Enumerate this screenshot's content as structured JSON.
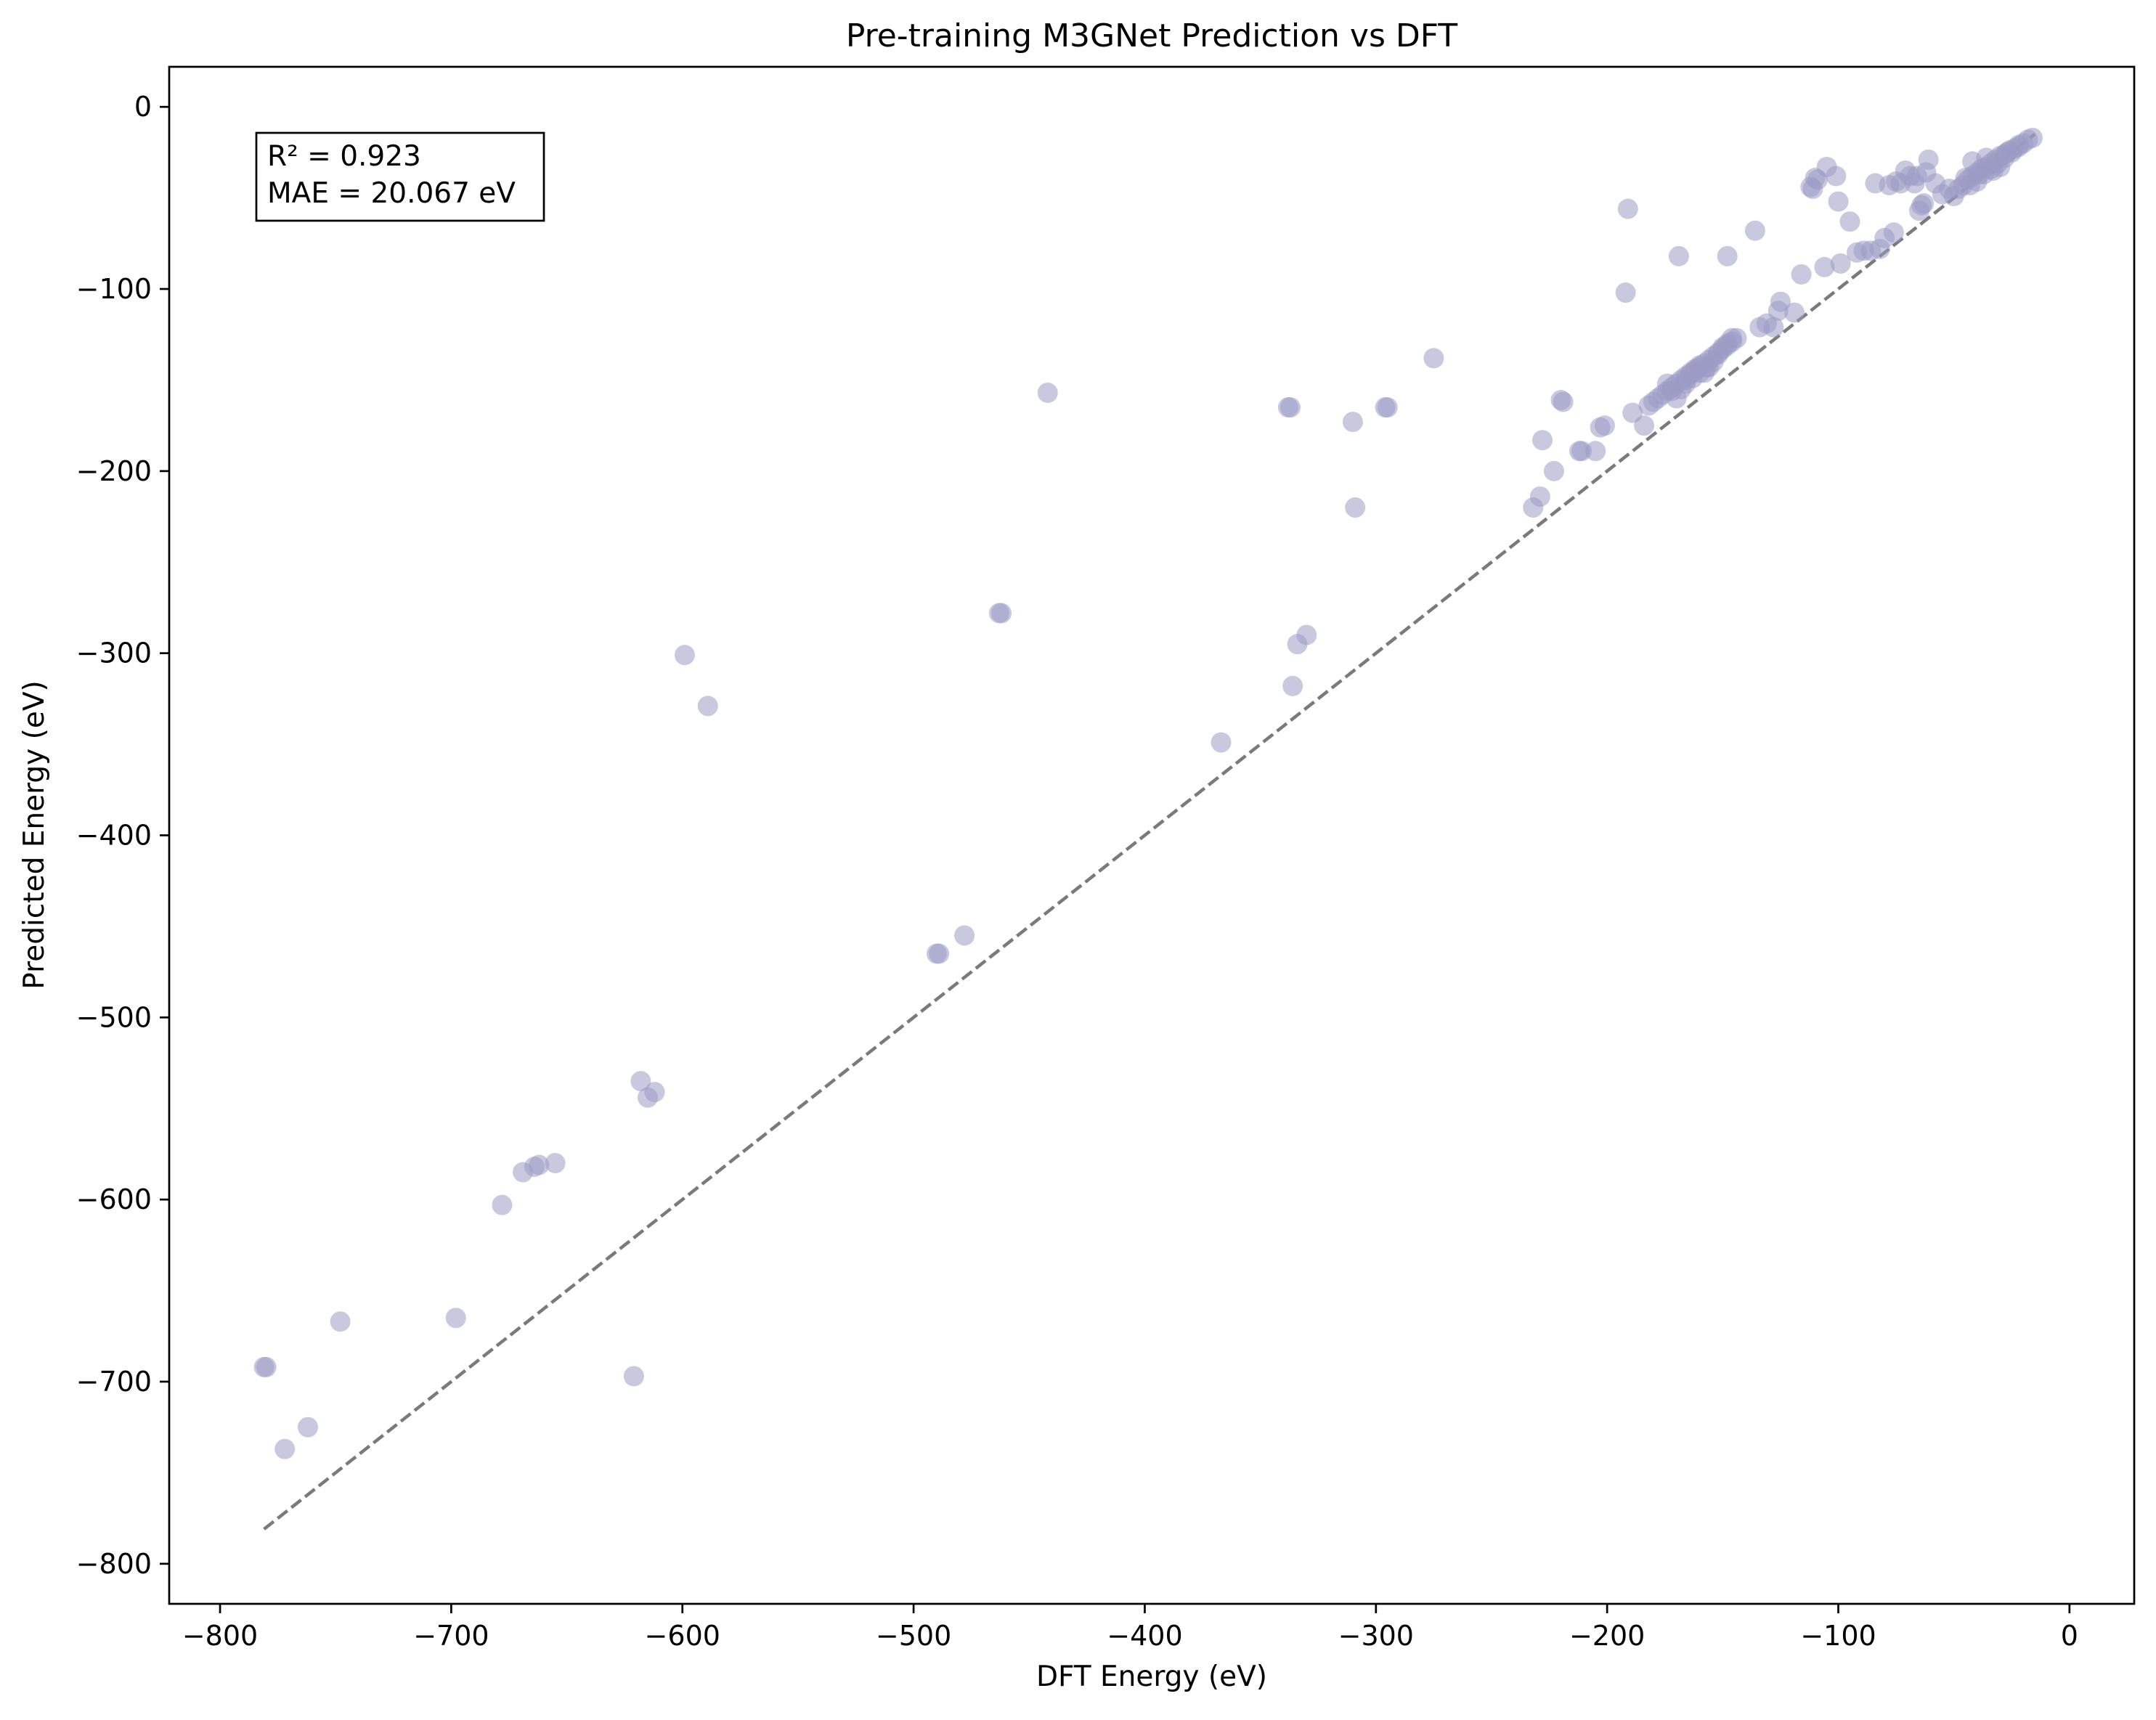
{
  "chart_data": {
    "type": "scatter",
    "title": "Pre-training M3GNet Prediction vs DFT",
    "xlabel": "DFT Energy (eV)",
    "ylabel": "Predicted Energy (eV)",
    "xlim": [
      -822,
      28
    ],
    "ylim": [
      -822,
      22
    ],
    "xticks": [
      -800,
      -700,
      -600,
      -500,
      -400,
      -300,
      -200,
      -100,
      0
    ],
    "yticks": [
      0,
      -100,
      -200,
      -300,
      -400,
      -500,
      -600,
      -700,
      -800
    ],
    "xtick_labels": [
      "−800",
      "−700",
      "−600",
      "−500",
      "−400",
      "−300",
      "−200",
      "−100",
      "0"
    ],
    "ytick_labels": [
      "0",
      "−100",
      "−200",
      "−300",
      "−400",
      "−500",
      "−600",
      "−700",
      "−800"
    ],
    "grid": false,
    "point_color": "#9a9bc4",
    "identity_line_color": "#7a7a7a",
    "identity_line": {
      "from": -781,
      "to": -15
    },
    "annotation": {
      "r2": "R² = 0.923",
      "mae": "MAE = 20.067 eV"
    },
    "series": [
      {
        "x": [
          -781,
          -780,
          -772,
          -762,
          -748,
          -698,
          -678,
          -669,
          -664,
          -662,
          -655,
          -621,
          -618,
          -615,
          -612,
          -599,
          -589,
          -490,
          -489,
          -478,
          -463,
          -462,
          -442,
          -367,
          -338,
          -337,
          -336,
          -334,
          -330,
          -310,
          -309,
          -296,
          -295,
          -275,
          -232,
          -229,
          -228,
          -223,
          -220,
          -219,
          -212,
          -211,
          -205,
          -203,
          -201,
          -192,
          -191,
          -189,
          -184,
          -182,
          -180,
          -178,
          -176,
          -174,
          -172,
          -170,
          -168,
          -166,
          -164,
          -162,
          -160,
          -158,
          -156,
          -154,
          -152,
          -150,
          -148,
          -146,
          -144,
          -174,
          -172,
          -170,
          -168,
          -166,
          -164,
          -162,
          -160,
          -158,
          -156,
          -154,
          -152,
          -150,
          -148,
          -146,
          -169,
          -166,
          -163,
          -160,
          -157,
          -148,
          -136,
          -134,
          -131,
          -128,
          -126,
          -125,
          -119,
          -116,
          -112,
          -111,
          -110,
          -109,
          -106,
          -105,
          -101,
          -100,
          -99,
          -95,
          -92,
          -89,
          -86,
          -84,
          -82,
          -80,
          -78,
          -76,
          -75,
          -73,
          -71,
          -69,
          -67,
          -66,
          -65,
          -64,
          -63,
          -62,
          -61,
          -58,
          -55,
          -52,
          -50,
          -48,
          -46,
          -44,
          -42,
          -40,
          -38,
          -36,
          -34,
          -32,
          -30,
          -28,
          -26,
          -24,
          -22,
          -20,
          -18,
          -16,
          -45,
          -42,
          -39,
          -36,
          -33,
          -30,
          -27,
          -43,
          -40,
          -37,
          -34,
          -31,
          -28,
          -25,
          -22
        ],
        "y": [
          -692,
          -692,
          -737,
          -725,
          -667,
          -665,
          -603,
          -585,
          -582,
          -581,
          -580,
          -697,
          -535,
          -544,
          -541,
          -301,
          -329,
          -465,
          -465,
          -455,
          -278,
          -278,
          -157,
          -349,
          -165,
          -165,
          -318,
          -295,
          -290,
          -173,
          -220,
          -165,
          -165,
          -138,
          -220,
          -214,
          -183,
          -200,
          -161,
          -162,
          -189,
          -189,
          -189,
          -176,
          -175,
          -102,
          -56,
          -168,
          -175,
          -164,
          -162,
          -160,
          -158,
          -156,
          -154,
          -152,
          -150,
          -148,
          -146,
          -145,
          -143,
          -141,
          -139,
          -137,
          -135,
          -133,
          -131,
          -129,
          -127,
          -152,
          -156,
          -160,
          -155,
          -150,
          -147,
          -144,
          -142,
          -146,
          -143,
          -140,
          -136,
          -132,
          -130,
          -127,
          -82,
          -152,
          -149,
          -146,
          -143,
          -82,
          -68,
          -121,
          -119,
          -121,
          -112,
          -107,
          -113,
          -92,
          -44,
          -45,
          -39,
          -40,
          -88,
          -33,
          -38,
          -52,
          -86,
          -63,
          -80,
          -79,
          -79,
          -42,
          -78,
          -72,
          -43,
          -69,
          -41,
          -42,
          -35,
          -38,
          -42,
          -38,
          -57,
          -54,
          -53,
          -36,
          -29,
          -42,
          -48,
          -45,
          -49,
          -45,
          -43,
          -40,
          -38,
          -36,
          -34,
          -33,
          -31,
          -29,
          -27,
          -26,
          -24,
          -23,
          -21,
          -20,
          -18,
          -17,
          -39,
          -30,
          -37,
          -28,
          -35,
          -33,
          -25,
          -43,
          -41,
          -37,
          -34,
          -31,
          -28,
          -25,
          -22
        ]
      }
    ]
  }
}
